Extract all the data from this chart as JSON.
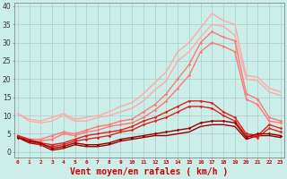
{
  "background_color": "#cceee8",
  "grid_color": "#aacccc",
  "xlabel": "Vent moyen/en rafales ( km/h )",
  "xlabel_color": "#cc0000",
  "xlabel_fontsize": 7,
  "ytick_labels": [
    "0",
    "5",
    "10",
    "15",
    "20",
    "25",
    "30",
    "35",
    "40"
  ],
  "ytick_vals": [
    0,
    5,
    10,
    15,
    20,
    25,
    30,
    35,
    40
  ],
  "xtick_vals": [
    0,
    1,
    2,
    3,
    4,
    5,
    6,
    7,
    8,
    9,
    10,
    11,
    12,
    13,
    14,
    15,
    16,
    17,
    18,
    19,
    20,
    21,
    22,
    23
  ],
  "ylim": [
    -1.5,
    41
  ],
  "xlim": [
    -0.3,
    23.3
  ],
  "lines": [
    {
      "x": [
        0,
        1,
        2,
        3,
        4,
        5,
        6,
        7,
        8,
        9,
        10,
        11,
        12,
        13,
        14,
        15,
        16,
        17,
        18,
        19,
        20,
        21,
        22,
        23
      ],
      "y": [
        10.5,
        9.0,
        8.5,
        9.5,
        10.5,
        9.0,
        9.5,
        10.0,
        11.0,
        12.5,
        13.5,
        16.0,
        19.0,
        22.0,
        27.5,
        30.0,
        34.0,
        38.0,
        36.0,
        35.0,
        21.0,
        20.5,
        17.5,
        16.5
      ],
      "color": "#ffaaaa",
      "lw": 1.0,
      "marker": null
    },
    {
      "x": [
        0,
        1,
        2,
        3,
        4,
        5,
        6,
        7,
        8,
        9,
        10,
        11,
        12,
        13,
        14,
        15,
        16,
        17,
        18,
        19,
        20,
        21,
        22,
        23
      ],
      "y": [
        10.5,
        8.5,
        8.0,
        8.5,
        10.0,
        8.5,
        8.5,
        9.5,
        10.0,
        11.0,
        12.0,
        14.0,
        17.0,
        19.5,
        25.0,
        27.5,
        31.5,
        35.0,
        34.5,
        32.0,
        20.0,
        19.5,
        16.5,
        15.5
      ],
      "color": "#ffaaaa",
      "lw": 1.0,
      "marker": null
    },
    {
      "x": [
        0,
        1,
        2,
        3,
        4,
        5,
        6,
        7,
        8,
        9,
        10,
        11,
        12,
        13,
        14,
        15,
        16,
        17,
        18,
        19,
        20,
        21,
        22,
        23
      ],
      "y": [
        4.5,
        3.5,
        3.5,
        4.5,
        5.5,
        5.0,
        6.0,
        7.0,
        7.5,
        8.5,
        9.0,
        11.0,
        13.0,
        16.0,
        20.0,
        24.0,
        30.0,
        33.0,
        31.5,
        30.5,
        16.0,
        14.5,
        9.5,
        8.5
      ],
      "color": "#ff7777",
      "lw": 1.0,
      "marker": "D",
      "markersize": 1.8
    },
    {
      "x": [
        0,
        1,
        2,
        3,
        4,
        5,
        6,
        7,
        8,
        9,
        10,
        11,
        12,
        13,
        14,
        15,
        16,
        17,
        18,
        19,
        20,
        21,
        22,
        23
      ],
      "y": [
        4.5,
        3.0,
        3.0,
        3.5,
        5.0,
        4.5,
        5.5,
        6.0,
        7.0,
        7.5,
        8.0,
        9.5,
        11.5,
        14.0,
        17.5,
        21.0,
        27.5,
        30.0,
        29.0,
        27.5,
        14.5,
        13.0,
        8.5,
        8.0
      ],
      "color": "#ff7777",
      "lw": 1.0,
      "marker": "D",
      "markersize": 1.8
    },
    {
      "x": [
        0,
        1,
        2,
        3,
        4,
        5,
        6,
        7,
        8,
        9,
        10,
        11,
        12,
        13,
        14,
        15,
        16,
        17,
        18,
        19,
        20,
        21,
        22,
        23
      ],
      "y": [
        4.5,
        3.5,
        2.5,
        2.0,
        2.5,
        3.5,
        4.5,
        5.0,
        5.5,
        6.0,
        7.0,
        8.5,
        9.5,
        11.0,
        12.5,
        14.0,
        14.0,
        13.5,
        11.0,
        9.5,
        5.0,
        4.5,
        7.5,
        6.5
      ],
      "color": "#dd2222",
      "lw": 1.0,
      "marker": "D",
      "markersize": 1.8
    },
    {
      "x": [
        0,
        1,
        2,
        3,
        4,
        5,
        6,
        7,
        8,
        9,
        10,
        11,
        12,
        13,
        14,
        15,
        16,
        17,
        18,
        19,
        20,
        21,
        22,
        23
      ],
      "y": [
        4.5,
        3.0,
        2.0,
        1.5,
        2.0,
        3.0,
        3.5,
        4.0,
        4.5,
        5.5,
        6.0,
        7.5,
        8.5,
        9.5,
        11.0,
        12.5,
        12.5,
        12.0,
        10.0,
        8.5,
        4.5,
        4.0,
        6.5,
        5.5
      ],
      "color": "#dd2222",
      "lw": 1.0,
      "marker": "D",
      "markersize": 1.8
    },
    {
      "x": [
        0,
        1,
        2,
        3,
        4,
        5,
        6,
        7,
        8,
        9,
        10,
        11,
        12,
        13,
        14,
        15,
        16,
        17,
        18,
        19,
        20,
        21,
        22,
        23
      ],
      "y": [
        4.0,
        3.0,
        2.5,
        1.0,
        1.5,
        2.5,
        2.0,
        2.0,
        2.5,
        3.5,
        4.0,
        4.5,
        5.0,
        5.5,
        6.0,
        6.5,
        8.0,
        8.5,
        8.5,
        8.0,
        4.0,
        5.0,
        5.0,
        4.5
      ],
      "color": "#990000",
      "lw": 1.0,
      "marker": "D",
      "markersize": 1.8
    },
    {
      "x": [
        0,
        1,
        2,
        3,
        4,
        5,
        6,
        7,
        8,
        9,
        10,
        11,
        12,
        13,
        14,
        15,
        16,
        17,
        18,
        19,
        20,
        21,
        22,
        23
      ],
      "y": [
        4.0,
        2.5,
        2.0,
        0.5,
        1.0,
        2.0,
        1.5,
        1.5,
        2.0,
        3.0,
        3.5,
        4.0,
        4.5,
        4.5,
        5.0,
        5.5,
        7.0,
        7.5,
        7.5,
        7.0,
        3.5,
        4.5,
        4.5,
        4.0
      ],
      "color": "#990000",
      "lw": 1.0,
      "marker": null
    }
  ]
}
